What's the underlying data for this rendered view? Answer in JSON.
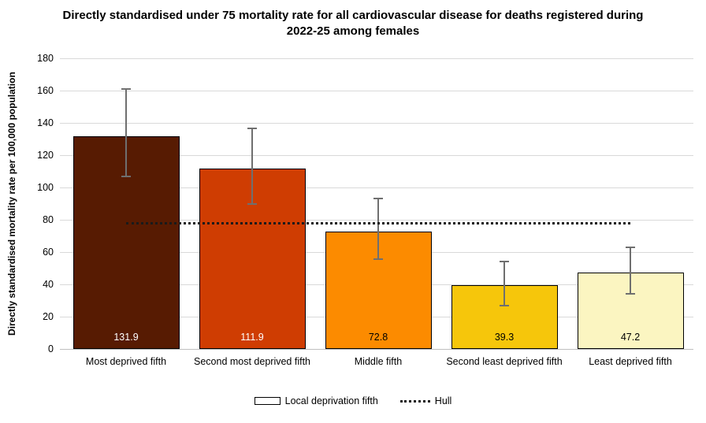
{
  "chart_data": {
    "type": "bar",
    "title": "Directly standardised under 75 mortality rate for all cardiovascular disease for deaths registered during 2022-25 among females",
    "ylabel": "Directly standardised mortality rate per 100,000 population",
    "xlabel": "",
    "ylim": [
      0,
      180
    ],
    "yticks": [
      0,
      20,
      40,
      60,
      80,
      100,
      120,
      140,
      160,
      180
    ],
    "grid": true,
    "legend_position": "bottom",
    "categories": [
      "Most deprived fifth",
      "Second most deprived fifth",
      "Middle fifth",
      "Second least deprived fifth",
      "Least deprived fifth"
    ],
    "series": [
      {
        "name": "Local deprivation fifth",
        "type": "bar",
        "values": [
          131.9,
          111.9,
          72.8,
          39.3,
          47.2
        ],
        "value_labels": [
          "131.9",
          "111.9",
          "72.8",
          "39.3",
          "47.2"
        ],
        "value_label_colors": [
          "#FFFFFF",
          "#FFFFFF",
          "#000000",
          "#000000",
          "#000000"
        ],
        "bar_colors": [
          "#571B02",
          "#CF3D02",
          "#FC8B00",
          "#F6C60B",
          "#FBF5C1"
        ],
        "error_low": [
          107,
          90,
          55.5,
          27,
          34
        ],
        "error_high": [
          161,
          136.5,
          93,
          54,
          63
        ]
      },
      {
        "name": "Hull",
        "type": "line",
        "line_style": "dotted",
        "value": 77.8,
        "color": "#1A1A1A"
      }
    ]
  },
  "colors": {
    "background": "#FFFFFF",
    "gridline": "#D9D9D9",
    "axis_line": "#BFBFBF",
    "error_bar": "#6F6F6F",
    "bar_border": "#000000",
    "text": "#000000"
  }
}
